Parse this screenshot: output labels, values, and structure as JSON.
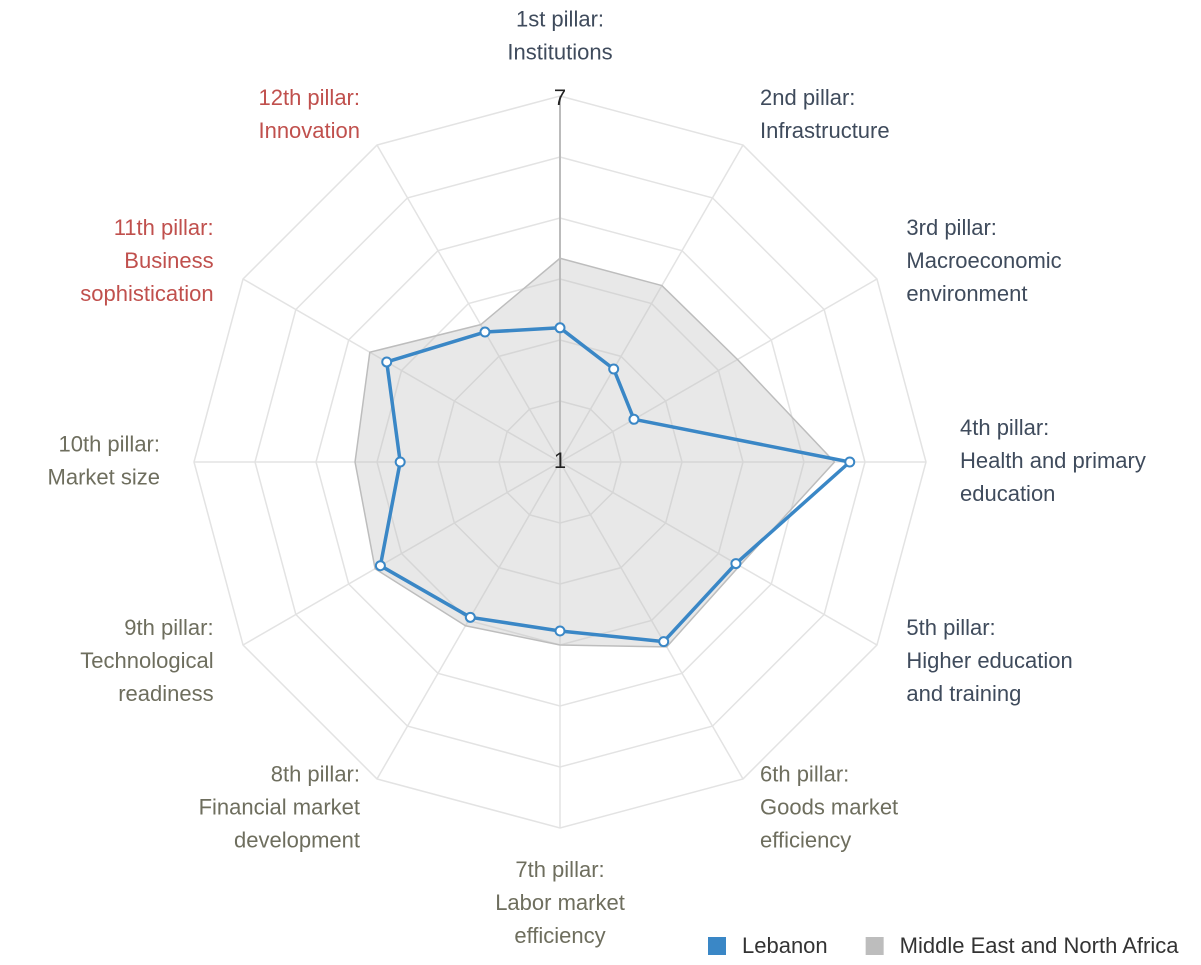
{
  "chart_data": {
    "type": "radar",
    "categories": [
      "1st pillar:\nInstitutions",
      "2nd pillar:\nInfrastructure",
      "3rd pillar:\nMacroeconomic\nenvironment",
      "4th pillar:\nHealth and primary\neducation",
      "5th pillar:\nHigher education\nand training",
      "6th pillar:\nGoods market\nefficiency",
      "7th pillar:\nLabor market\nefficiency",
      "8th pillar:\nFinancial market\ndevelopment",
      "9th pillar:\nTechnological\nreadiness",
      "10th pillar:\nMarket size",
      "11th pillar:\nBusiness\nsophistication",
      "12th pillar:\nInnovation"
    ],
    "category_colors": [
      "#3f4b5c",
      "#3f4b5c",
      "#3f4b5c",
      "#3f4b5c",
      "#3f4b5c",
      "#6e6e5e",
      "#6e6e5e",
      "#6e6e5e",
      "#6e6e5e",
      "#6e6e5e",
      "#c0504d",
      "#c0504d"
    ],
    "series": [
      {
        "name": "Middle East and North Africa",
        "color": "#bdbdbd",
        "values": [
          4.34,
          4.34,
          4.36,
          5.5,
          4.4,
          4.5,
          4.0,
          4.1,
          4.5,
          4.36,
          4.6,
          3.6
        ]
      },
      {
        "name": "Lebanon",
        "color": "#3a87c6",
        "values": [
          3.2,
          2.76,
          2.4,
          5.75,
          4.33,
          4.4,
          3.77,
          3.94,
          4.4,
          3.62,
          4.28,
          3.46
        ]
      }
    ],
    "ylim": [
      1,
      7
    ],
    "yticks": [
      1,
      2,
      3,
      4,
      5,
      6,
      7
    ],
    "grid": true
  }
}
